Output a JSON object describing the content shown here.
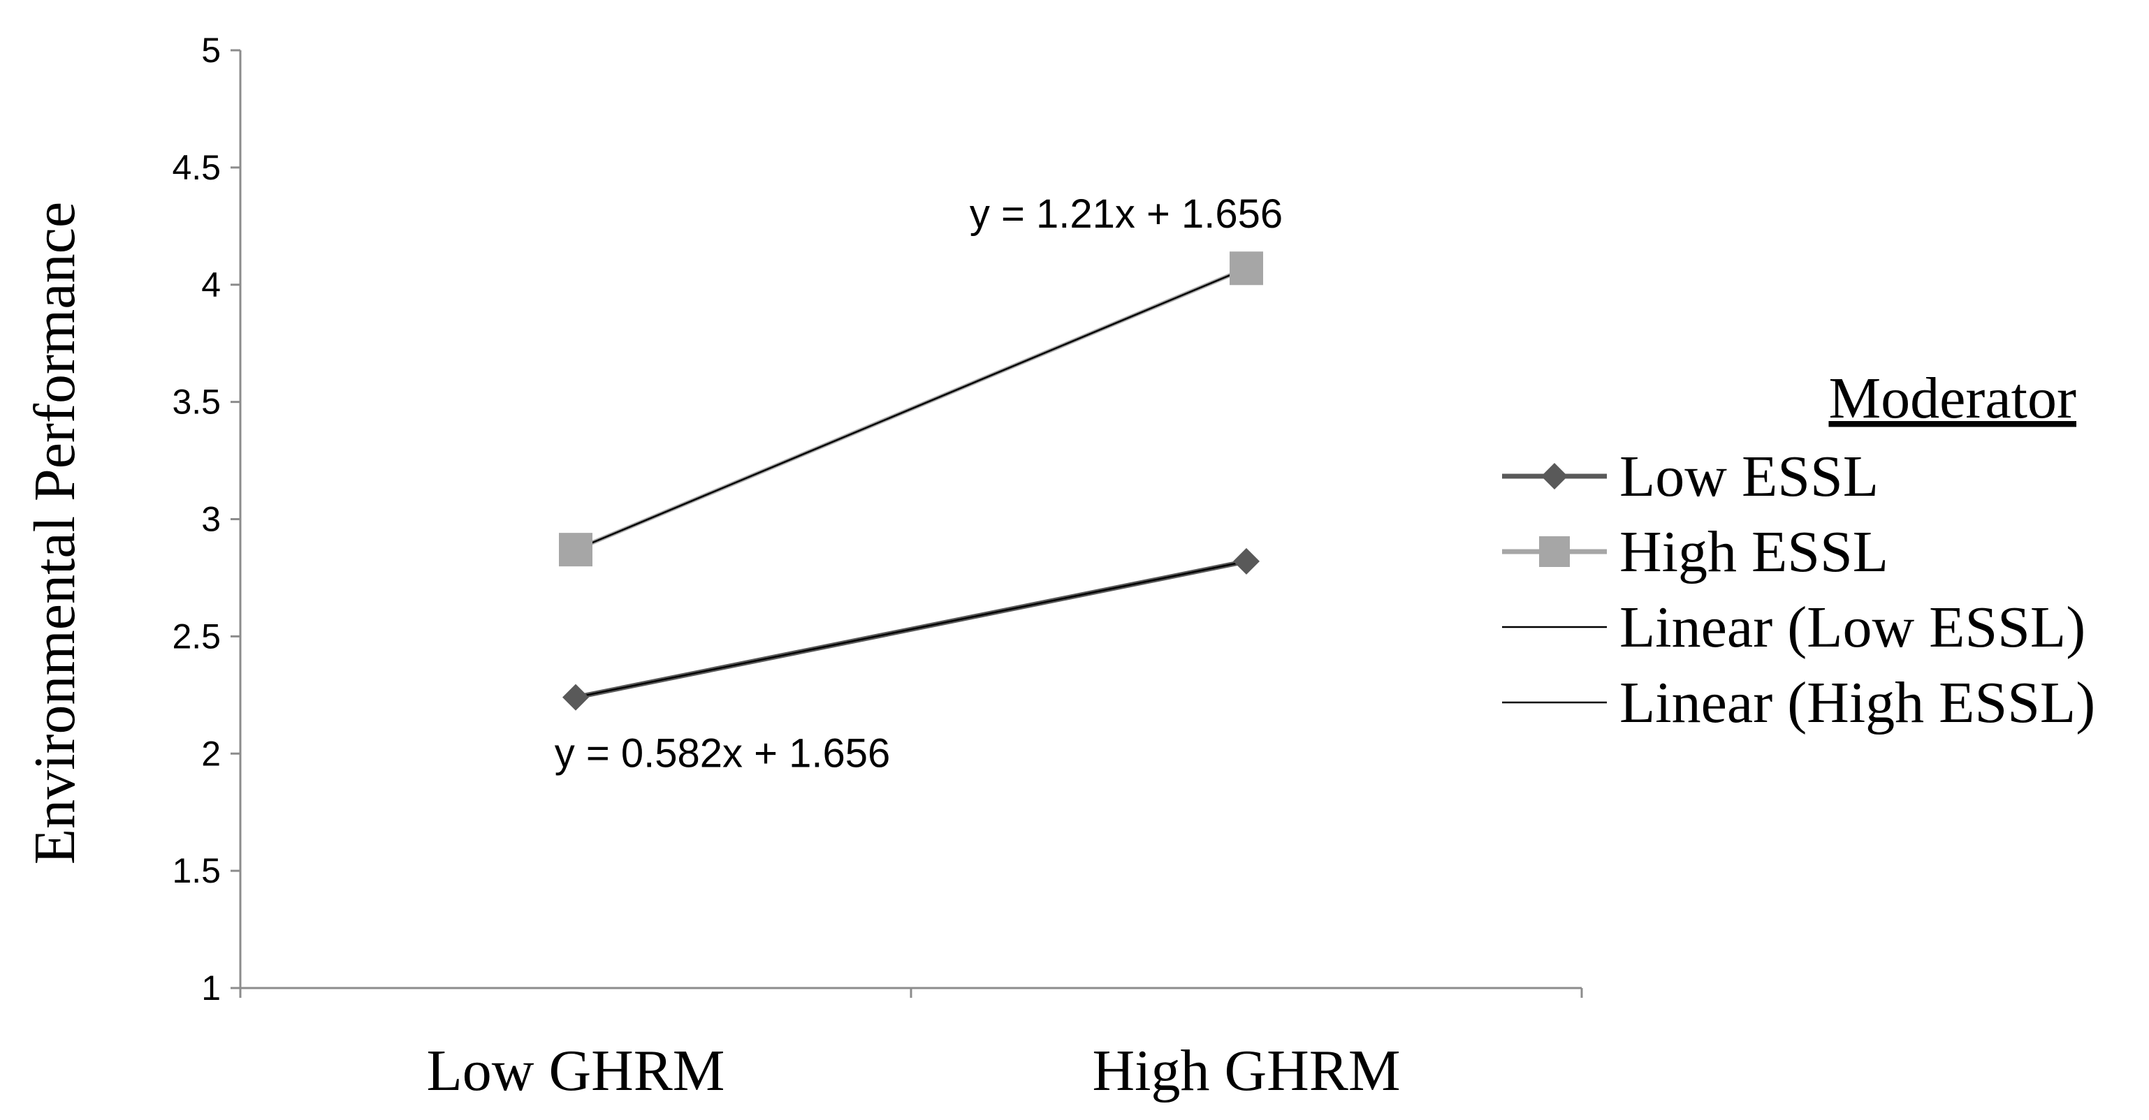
{
  "chart_data": {
    "type": "line",
    "categories": [
      "Low GHRM",
      "High GHRM"
    ],
    "ylabel": "Environmental Performance",
    "xlabel": "",
    "ylim": [
      1,
      5
    ],
    "yticks": [
      "1",
      "1.5",
      "2",
      "2.5",
      "3",
      "3.5",
      "4",
      "4.5",
      "5"
    ],
    "grid": false,
    "legend_position": "right",
    "legend_title": "Moderator",
    "series": [
      {
        "name": "Low ESSL",
        "values": [
          2.24,
          2.82
        ],
        "color": "#595959",
        "marker": "diamond"
      },
      {
        "name": "High ESSL",
        "values": [
          2.87,
          4.07
        ],
        "color": "#a6a6a6",
        "marker": "square"
      }
    ],
    "trendlines": [
      {
        "name": "Linear (Low ESSL)",
        "of_series": 0,
        "equation": "y = 0.582x + 1.656",
        "color": "#000000"
      },
      {
        "name": "Linear (High ESSL)",
        "of_series": 1,
        "equation": "y = 1.21x + 1.656",
        "color": "#000000"
      }
    ]
  }
}
